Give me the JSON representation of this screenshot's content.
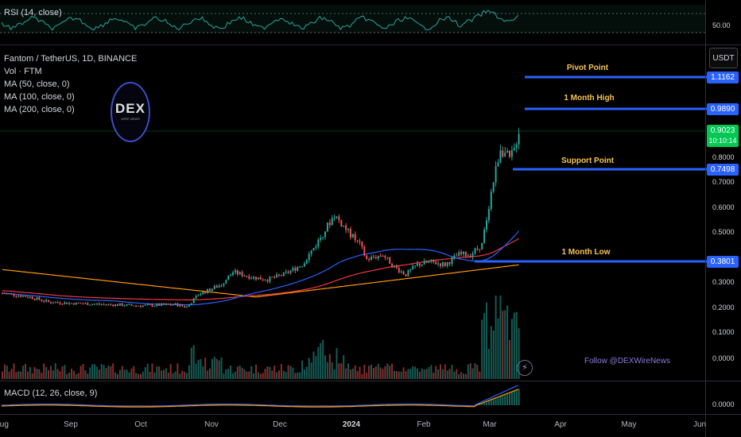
{
  "rsi": {
    "label": "RSI (14, close)",
    "level": "50.00"
  },
  "legend": {
    "symbol": "Fantom / TetherUS, 1D, BINANCE",
    "volume": "Vol · FTM",
    "ma50": "MA (50, close, 0)",
    "ma100": "MA (100, close, 0)",
    "ma200": "MA (200, close, 0)"
  },
  "logo": {
    "text": "DEX",
    "subtext": "WIRE NEWS"
  },
  "currency_button": "USDT",
  "annotations": {
    "pivot": "Pivot Point",
    "month_high": "1 Month High",
    "support": "Support Point",
    "month_low": "1 Month Low"
  },
  "price_tags": {
    "pivot": "1.1162",
    "month_high": "0.9890",
    "current": "0.9023",
    "countdown": "10:10:14",
    "support": "0.7498",
    "month_low": "0.3801"
  },
  "price_axis": [
    "0.8000",
    "0.7000",
    "0.6000",
    "0.5000",
    "0.4000",
    "0.3000",
    "0.2000",
    "0.1000",
    "0.0000"
  ],
  "macd": {
    "label": "MACD (12, 26, close, 9)",
    "level": "0.0000"
  },
  "follow_text": "Follow @DEXWireNews",
  "time_axis": [
    "Aug",
    "Sep",
    "Oct",
    "Nov",
    "Dec",
    "2024",
    "Feb",
    "Mar",
    "Apr",
    "May",
    "Jun"
  ],
  "colors": {
    "up": "#26a69a",
    "down": "#ef5350",
    "ma50": "#2962ff",
    "ma100": "#f23645",
    "ma200": "#ff9800",
    "level_line": "#2962ff",
    "annotation": "#f6c453",
    "current_tag": "#00c853"
  }
}
